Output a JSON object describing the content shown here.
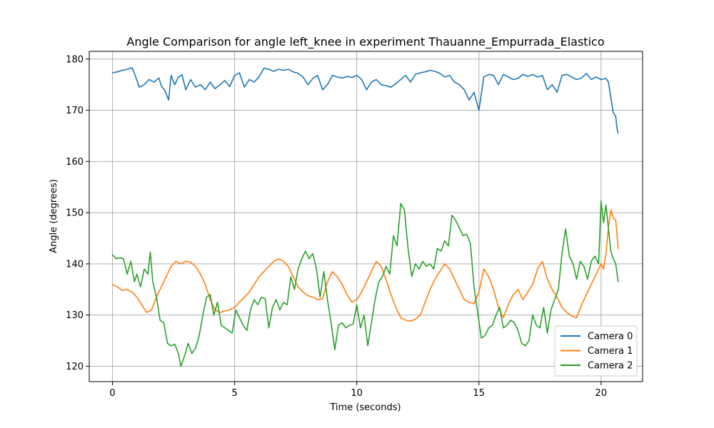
{
  "chart_data": {
    "type": "line",
    "title": "Angle Comparison for angle left_knee in experiment Thauanne_Empurrada_Elastico",
    "xlabel": "Time (seconds)",
    "ylabel": "Angle (degrees)",
    "xlim": [
      -0.95,
      21.7
    ],
    "ylim": [
      117,
      181.5
    ],
    "xticks": [
      0,
      5,
      10,
      15,
      20
    ],
    "yticks": [
      120,
      130,
      140,
      150,
      160,
      170,
      180
    ],
    "grid": true,
    "legend_position": "lower-right",
    "series": [
      {
        "name": "Camera 0",
        "color": "#1f77b4",
        "x": [
          0,
          0.2,
          0.4,
          0.6,
          0.8,
          0.9,
          1.1,
          1.3,
          1.5,
          1.7,
          1.9,
          2.0,
          2.15,
          2.3,
          2.4,
          2.55,
          2.7,
          2.85,
          3.0,
          3.2,
          3.4,
          3.6,
          3.8,
          4.0,
          4.2,
          4.4,
          4.6,
          4.8,
          5.0,
          5.2,
          5.4,
          5.6,
          5.8,
          6.0,
          6.2,
          6.4,
          6.6,
          6.8,
          7.0,
          7.2,
          7.4,
          7.6,
          7.8,
          8.0,
          8.2,
          8.4,
          8.6,
          8.8,
          9.0,
          9.2,
          9.4,
          9.6,
          9.8,
          10.0,
          10.2,
          10.4,
          10.6,
          10.8,
          11.0,
          11.2,
          11.4,
          11.6,
          11.8,
          12.0,
          12.2,
          12.4,
          12.6,
          12.8,
          13.0,
          13.2,
          13.4,
          13.6,
          13.8,
          14.0,
          14.2,
          14.4,
          14.6,
          14.8,
          15.0,
          15.2,
          15.4,
          15.6,
          15.8,
          16.0,
          16.2,
          16.4,
          16.6,
          16.8,
          17.0,
          17.2,
          17.4,
          17.6,
          17.8,
          18.0,
          18.2,
          18.4,
          18.6,
          18.8,
          19.0,
          19.2,
          19.4,
          19.6,
          19.8,
          20.0,
          20.2,
          20.3,
          20.4,
          20.5,
          20.6,
          20.65,
          20.7
        ],
        "values": [
          177.3,
          177.5,
          177.8,
          178.0,
          178.3,
          177.2,
          174.5,
          175.0,
          176.0,
          175.5,
          176.3,
          174.8,
          173.8,
          172.0,
          176.8,
          175.0,
          176.5,
          176.9,
          174.0,
          176.0,
          174.5,
          175.0,
          174.0,
          175.5,
          174.2,
          175.0,
          175.8,
          174.6,
          176.8,
          177.3,
          174.5,
          176.0,
          175.5,
          176.5,
          178.2,
          178.0,
          177.6,
          178.0,
          177.8,
          178.0,
          177.5,
          177.2,
          176.5,
          175.0,
          176.2,
          176.8,
          174.0,
          175.0,
          176.8,
          176.5,
          176.3,
          176.6,
          176.4,
          176.8,
          176.0,
          174.0,
          175.5,
          176.0,
          175.0,
          174.8,
          174.5,
          175.2,
          176.0,
          176.8,
          175.5,
          177.0,
          177.3,
          177.5,
          177.8,
          177.6,
          177.2,
          176.5,
          176.8,
          175.5,
          175.0,
          174.0,
          172.0,
          173.5,
          170.0,
          176.5,
          177.0,
          176.8,
          175.0,
          177.0,
          176.5,
          176.0,
          176.2,
          177.0,
          176.6,
          177.0,
          176.5,
          176.8,
          174.0,
          175.0,
          173.5,
          176.8,
          177.0,
          176.5,
          176.0,
          176.3,
          177.2,
          176.0,
          176.5,
          176.0,
          176.2,
          175.5,
          172.5,
          169.5,
          168.8,
          166.5,
          165.5
        ]
      },
      {
        "name": "Camera 1",
        "color": "#ff7f0e",
        "x": [
          0,
          0.2,
          0.4,
          0.6,
          0.8,
          1.0,
          1.2,
          1.4,
          1.6,
          1.8,
          2.0,
          2.2,
          2.4,
          2.6,
          2.8,
          3.0,
          3.2,
          3.4,
          3.6,
          3.8,
          4.0,
          4.2,
          4.4,
          4.6,
          4.8,
          5.0,
          5.2,
          5.4,
          5.6,
          5.8,
          6.0,
          6.2,
          6.4,
          6.6,
          6.8,
          7.0,
          7.2,
          7.4,
          7.6,
          7.8,
          8.0,
          8.2,
          8.4,
          8.6,
          8.8,
          9.0,
          9.2,
          9.4,
          9.6,
          9.8,
          10.0,
          10.2,
          10.4,
          10.6,
          10.8,
          11.0,
          11.2,
          11.4,
          11.6,
          11.8,
          12.0,
          12.2,
          12.4,
          12.6,
          12.8,
          13.0,
          13.2,
          13.4,
          13.6,
          13.8,
          14.0,
          14.2,
          14.4,
          14.6,
          14.8,
          15.0,
          15.2,
          15.4,
          15.6,
          15.8,
          16.0,
          16.2,
          16.4,
          16.6,
          16.8,
          17.0,
          17.2,
          17.4,
          17.6,
          17.8,
          18.0,
          18.2,
          18.4,
          18.6,
          18.8,
          19.0,
          19.2,
          19.4,
          19.6,
          19.8,
          20.0,
          20.1,
          20.2,
          20.3,
          20.4,
          20.5,
          20.6,
          20.7
        ],
        "values": [
          136.0,
          135.5,
          134.8,
          135.0,
          134.5,
          133.5,
          132.0,
          130.5,
          131.0,
          133.5,
          135.5,
          137.5,
          139.5,
          140.5,
          140.0,
          140.5,
          140.3,
          139.5,
          138.0,
          136.0,
          133.0,
          131.0,
          130.5,
          130.8,
          131.0,
          131.5,
          132.5,
          133.5,
          134.5,
          136.0,
          137.5,
          138.5,
          139.5,
          140.5,
          141.0,
          140.5,
          139.5,
          137.5,
          135.5,
          134.5,
          133.8,
          133.5,
          133.0,
          133.2,
          136.5,
          138.5,
          137.5,
          136.0,
          134.0,
          132.5,
          133.0,
          134.5,
          136.5,
          138.5,
          140.5,
          139.5,
          137.0,
          134.0,
          131.5,
          129.5,
          129.0,
          128.8,
          129.2,
          130.0,
          132.5,
          135.0,
          137.0,
          138.5,
          140.0,
          139.0,
          137.0,
          135.0,
          133.0,
          132.5,
          132.2,
          134.5,
          139.0,
          137.5,
          135.0,
          131.5,
          129.5,
          132.0,
          134.0,
          135.0,
          133.0,
          134.5,
          136.0,
          139.0,
          140.5,
          137.0,
          135.0,
          133.5,
          131.5,
          130.5,
          129.8,
          129.5,
          132.0,
          134.0,
          136.0,
          138.0,
          140.0,
          139.0,
          142.0,
          147.0,
          150.5,
          149.0,
          148.5,
          143.0
        ]
      },
      {
        "name": "Camera 2",
        "color": "#2ca02c",
        "x": [
          0,
          0.15,
          0.3,
          0.45,
          0.6,
          0.75,
          0.9,
          1.0,
          1.15,
          1.3,
          1.45,
          1.55,
          1.65,
          1.8,
          1.95,
          2.1,
          2.25,
          2.4,
          2.55,
          2.7,
          2.8,
          2.95,
          3.1,
          3.25,
          3.4,
          3.55,
          3.7,
          3.85,
          4.0,
          4.15,
          4.3,
          4.45,
          4.6,
          4.75,
          4.9,
          5.05,
          5.2,
          5.35,
          5.5,
          5.65,
          5.8,
          5.95,
          6.1,
          6.25,
          6.4,
          6.55,
          6.7,
          6.85,
          7.0,
          7.15,
          7.3,
          7.45,
          7.6,
          7.75,
          7.9,
          8.05,
          8.2,
          8.35,
          8.5,
          8.65,
          8.8,
          8.95,
          9.1,
          9.25,
          9.4,
          9.55,
          9.7,
          9.85,
          10.0,
          10.15,
          10.3,
          10.45,
          10.6,
          10.75,
          10.9,
          11.05,
          11.2,
          11.35,
          11.5,
          11.65,
          11.8,
          11.95,
          12.1,
          12.25,
          12.4,
          12.55,
          12.7,
          12.85,
          13.0,
          13.15,
          13.3,
          13.45,
          13.6,
          13.75,
          13.9,
          14.05,
          14.2,
          14.35,
          14.5,
          14.65,
          14.8,
          14.95,
          15.1,
          15.25,
          15.4,
          15.55,
          15.7,
          15.85,
          16.0,
          16.15,
          16.3,
          16.45,
          16.6,
          16.75,
          16.9,
          17.05,
          17.2,
          17.35,
          17.5,
          17.65,
          17.8,
          17.95,
          18.1,
          18.25,
          18.4,
          18.55,
          18.7,
          18.85,
          19.0,
          19.15,
          19.3,
          19.45,
          19.6,
          19.75,
          19.9,
          20.0,
          20.1,
          20.2,
          20.3,
          20.4,
          20.5,
          20.6,
          20.7
        ],
        "values": [
          141.8,
          141.0,
          141.2,
          141.0,
          138.0,
          140.5,
          136.5,
          138.0,
          135.5,
          139.0,
          138.0,
          142.3,
          136.5,
          133.5,
          129.0,
          128.5,
          124.5,
          124.0,
          124.3,
          122.5,
          120.0,
          122.0,
          124.5,
          122.5,
          123.5,
          126.0,
          130.0,
          133.5,
          134.0,
          130.0,
          132.5,
          128.0,
          127.5,
          127.0,
          126.5,
          131.0,
          129.5,
          128.0,
          127.0,
          131.0,
          133.0,
          132.0,
          133.5,
          133.2,
          127.5,
          131.5,
          133.0,
          131.0,
          132.5,
          132.0,
          137.5,
          135.0,
          139.0,
          141.0,
          142.5,
          141.0,
          142.0,
          139.0,
          133.5,
          138.5,
          133.0,
          128.5,
          123.2,
          128.0,
          128.5,
          127.5,
          128.0,
          128.2,
          132.0,
          127.5,
          130.0,
          124.0,
          128.5,
          133.0,
          136.5,
          137.5,
          139.5,
          138.0,
          145.5,
          143.5,
          151.8,
          150.5,
          143.0,
          137.5,
          140.0,
          139.0,
          140.5,
          139.5,
          140.0,
          139.0,
          143.0,
          142.5,
          144.5,
          143.5,
          149.5,
          148.5,
          147.0,
          145.5,
          145.8,
          144.0,
          135.5,
          130.5,
          125.5,
          126.0,
          127.5,
          128.0,
          130.0,
          131.5,
          127.5,
          128.0,
          129.0,
          128.5,
          127.0,
          124.5,
          124.0,
          125.0,
          130.0,
          128.0,
          127.5,
          131.5,
          126.5,
          131.0,
          133.0,
          135.0,
          142.0,
          146.8,
          141.5,
          140.0,
          137.0,
          140.5,
          139.5,
          137.0,
          140.5,
          141.5,
          140.0,
          152.3,
          148.0,
          151.5,
          147.0,
          142.5,
          141.0,
          140.0,
          136.5
        ]
      }
    ]
  }
}
